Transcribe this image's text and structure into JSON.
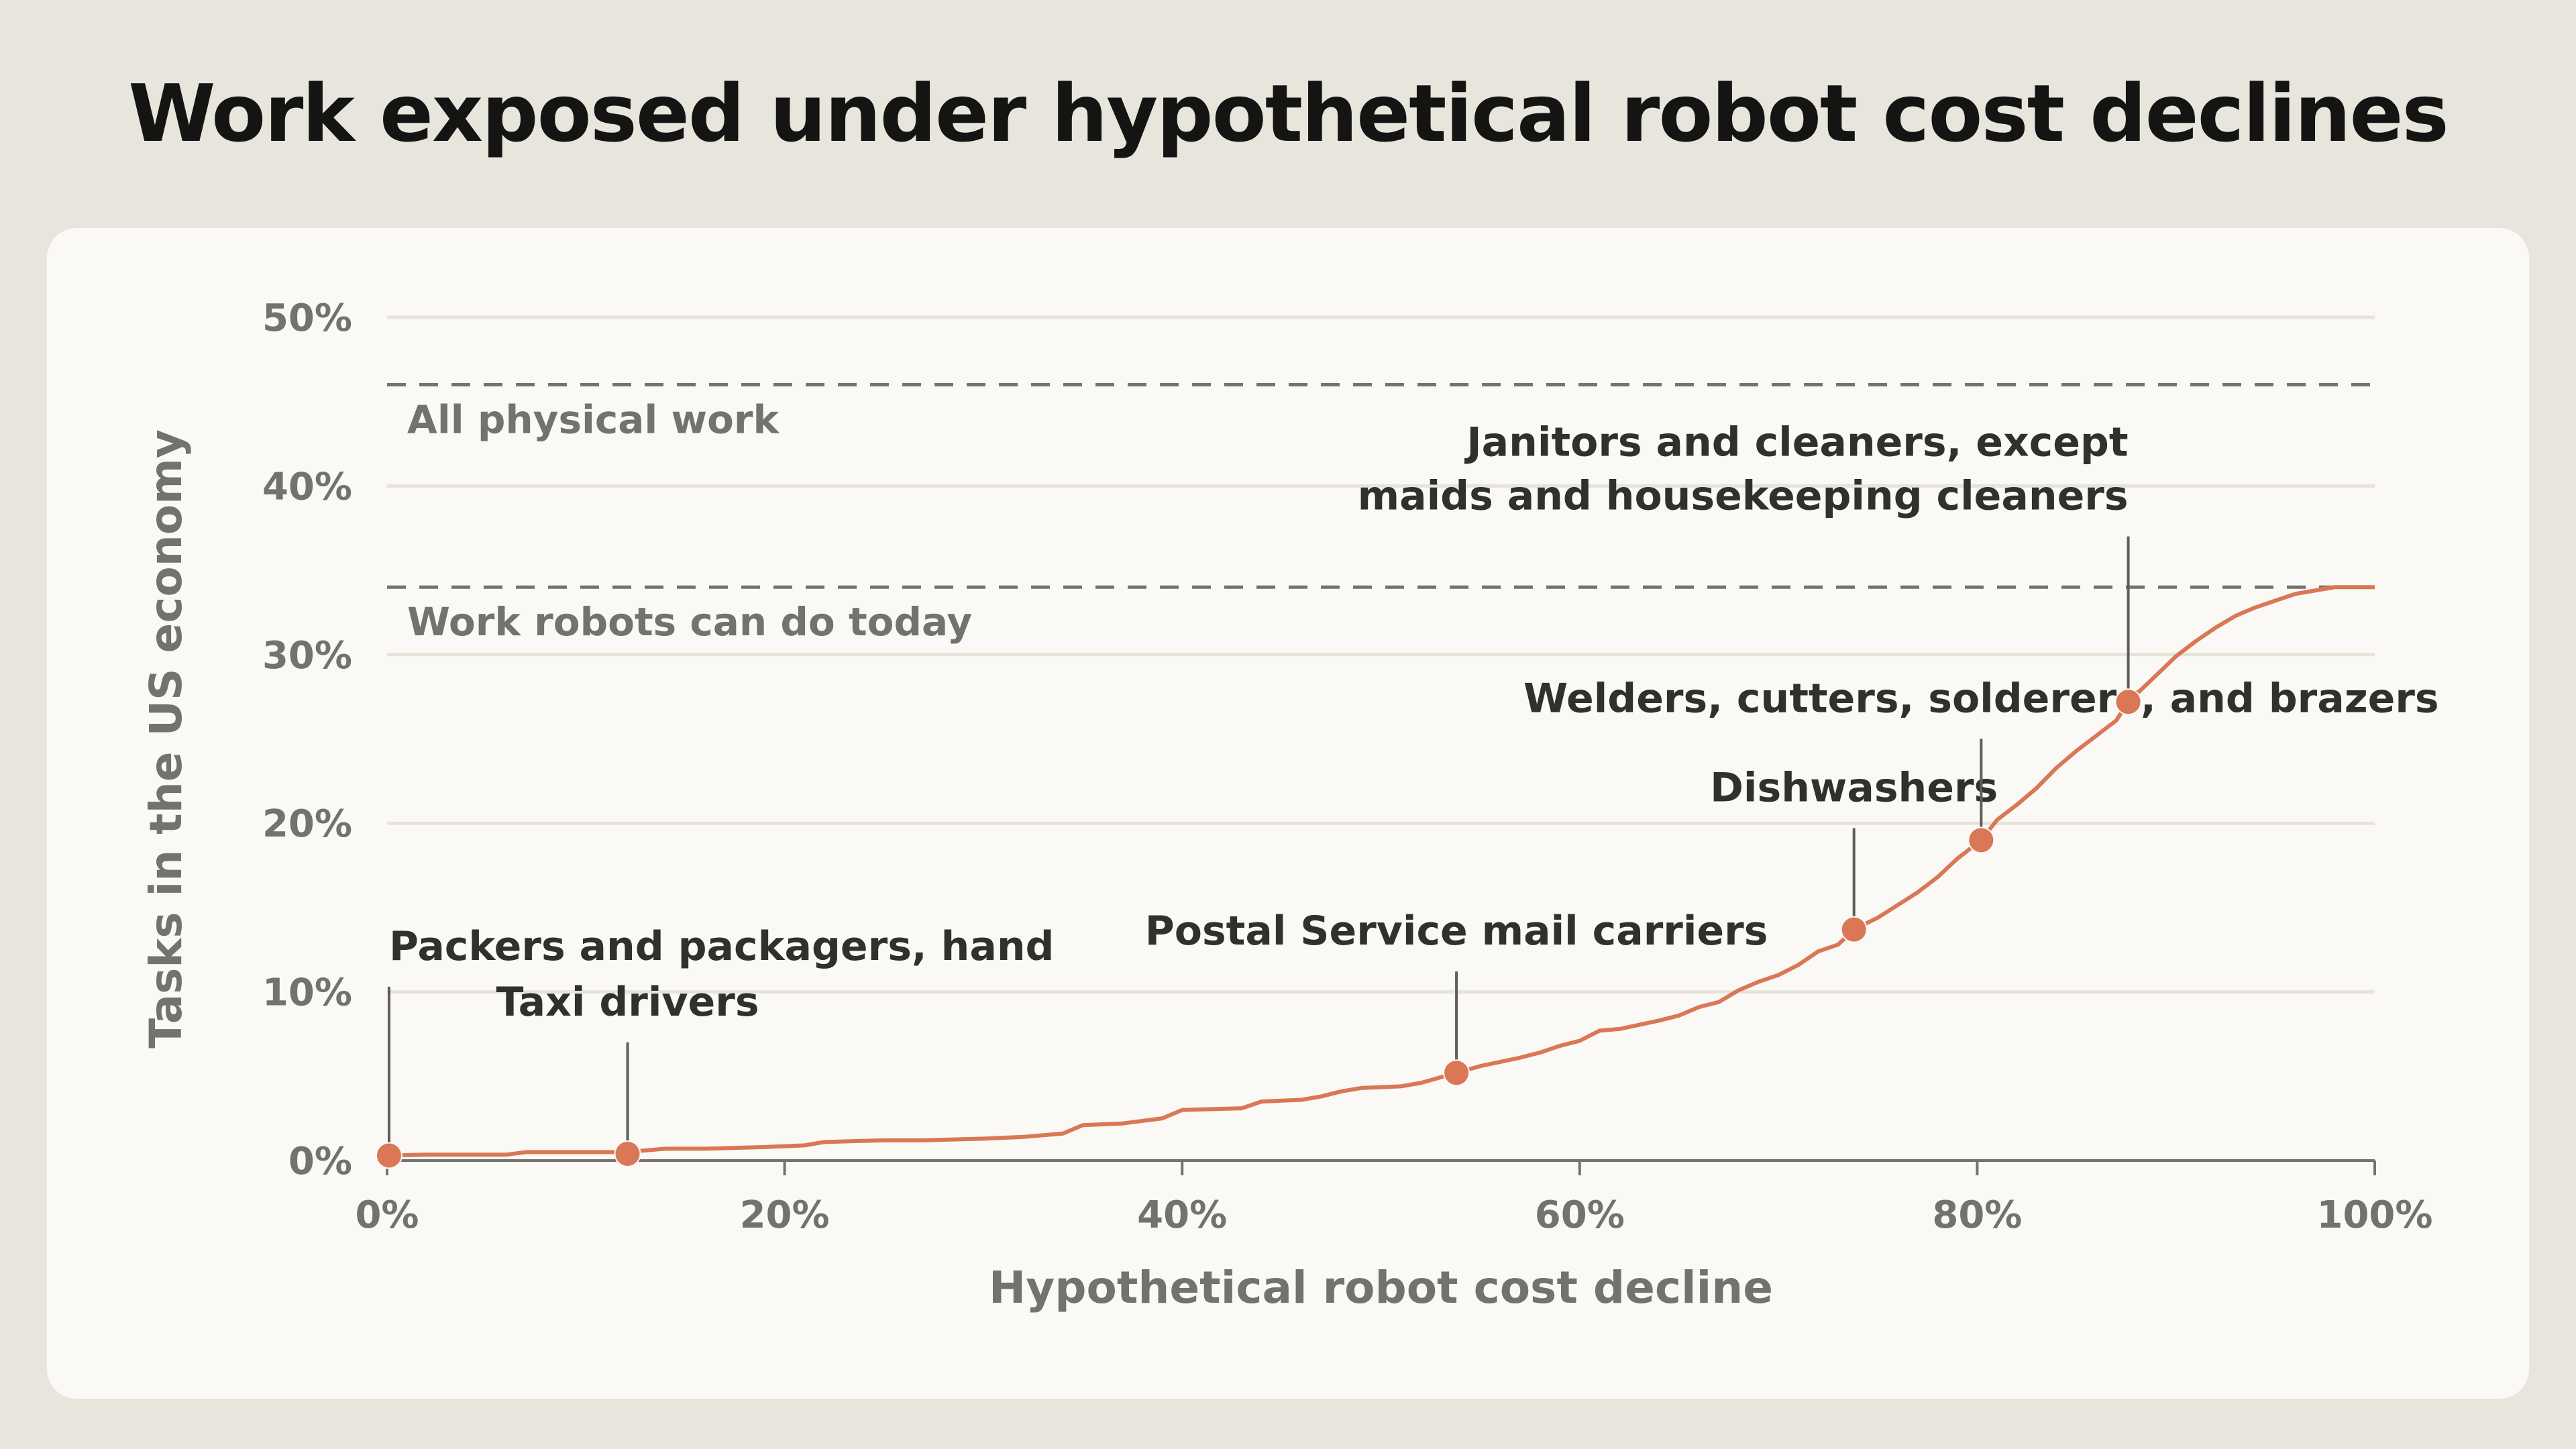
{
  "chart_data": {
    "type": "line",
    "title": "Work exposed under hypothetical robot cost declines",
    "xlabel": "Hypothetical robot cost decline",
    "ylabel": "Tasks in the US economy",
    "xlim": [
      0,
      100
    ],
    "ylim": [
      0,
      50
    ],
    "x_ticks": [
      "0%",
      "20%",
      "40%",
      "60%",
      "80%",
      "100%"
    ],
    "y_ticks": [
      "0%",
      "10%",
      "20%",
      "30%",
      "40%",
      "50%"
    ],
    "grid": true,
    "accent_color": "#d97757",
    "reference_lines": [
      {
        "label": "All physical work",
        "y": 46
      },
      {
        "label": "Work robots can do today",
        "y": 34
      }
    ],
    "series": [
      {
        "x": [
          0,
          2,
          4,
          6,
          7,
          9,
          12,
          14,
          16,
          19,
          21,
          22,
          25,
          27,
          30,
          32,
          34,
          35,
          37,
          39,
          40,
          43,
          44,
          46,
          47,
          48,
          49,
          51,
          52,
          53.8,
          55,
          57,
          58,
          59,
          60,
          61,
          62,
          64,
          65,
          66,
          67,
          68,
          69,
          70,
          71,
          72,
          73,
          73.8,
          75,
          77,
          78,
          79,
          80.2,
          81,
          82,
          83,
          84,
          85,
          86,
          87,
          87.6,
          88.5,
          90,
          91,
          92,
          93,
          94,
          95,
          96,
          97,
          98,
          100
        ],
        "y": [
          0.3,
          0.35,
          0.35,
          0.35,
          0.5,
          0.5,
          0.5,
          0.7,
          0.7,
          0.8,
          0.9,
          1.1,
          1.2,
          1.2,
          1.3,
          1.4,
          1.6,
          2.1,
          2.2,
          2.5,
          3.0,
          3.1,
          3.5,
          3.6,
          3.8,
          4.1,
          4.3,
          4.4,
          4.6,
          5.2,
          5.6,
          6.1,
          6.4,
          6.8,
          7.1,
          7.7,
          7.8,
          8.3,
          8.6,
          9.1,
          9.4,
          10.1,
          10.6,
          11.0,
          11.6,
          12.4,
          12.8,
          13.7,
          14.4,
          15.9,
          16.8,
          17.9,
          19.0,
          20.2,
          21.1,
          22.1,
          23.3,
          24.3,
          25.2,
          26.1,
          27.2,
          28.2,
          29.9,
          30.8,
          31.6,
          32.3,
          32.8,
          33.2,
          33.6,
          33.8,
          34.0,
          34.0
        ]
      }
    ],
    "annotations": [
      {
        "lines": [
          "Packers and packagers, hand"
        ],
        "x": 0.1,
        "y": 0.3
      },
      {
        "lines": [
          "Taxi drivers"
        ],
        "x": 12.1,
        "y": 0.4
      },
      {
        "lines": [
          "Postal Service mail carriers"
        ],
        "x": 53.8,
        "y": 5.2
      },
      {
        "lines": [
          "Dishwashers"
        ],
        "x": 73.8,
        "y": 13.7
      },
      {
        "lines": [
          "Welders, cutters, solderers, and brazers"
        ],
        "x": 80.2,
        "y": 19.0
      },
      {
        "lines": [
          "Janitors and cleaners, except",
          "maids and housekeeping cleaners"
        ],
        "x": 87.6,
        "y": 27.2
      }
    ]
  }
}
